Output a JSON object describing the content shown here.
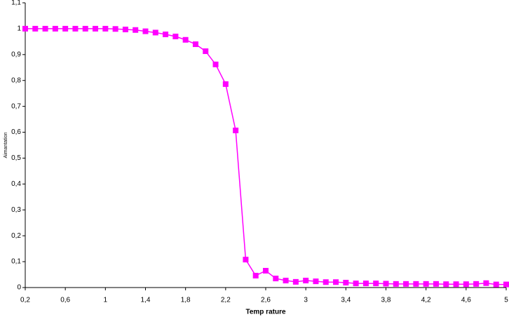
{
  "chart_data": {
    "type": "line",
    "xlabel": "Temp rature",
    "ylabel": "Aimantation",
    "x": [
      0.2,
      0.3,
      0.4,
      0.5,
      0.6,
      0.7,
      0.8,
      0.9,
      1.0,
      1.1,
      1.2,
      1.3,
      1.4,
      1.5,
      1.6,
      1.7,
      1.8,
      1.9,
      2.0,
      2.1,
      2.2,
      2.3,
      2.4,
      2.5,
      2.6,
      2.7,
      2.8,
      2.9,
      3.0,
      3.1,
      3.2,
      3.3,
      3.4,
      3.5,
      3.6,
      3.7,
      3.8,
      3.9,
      4.0,
      4.1,
      4.2,
      4.3,
      4.4,
      4.5,
      4.6,
      4.7,
      4.8,
      4.9,
      5.0
    ],
    "series": [
      {
        "name": "Aimantation",
        "color": "#ff00ff",
        "values": [
          1,
          1,
          1,
          1,
          1,
          1,
          1,
          1,
          1,
          0.999,
          0.997,
          0.995,
          0.99,
          0.985,
          0.978,
          0.97,
          0.957,
          0.94,
          0.913,
          0.862,
          0.786,
          0.607,
          0.108,
          0.046,
          0.065,
          0.035,
          0.027,
          0.022,
          0.027,
          0.024,
          0.021,
          0.021,
          0.019,
          0.016,
          0.016,
          0.016,
          0.015,
          0.014,
          0.014,
          0.014,
          0.014,
          0.014,
          0.013,
          0.013,
          0.013,
          0.014,
          0.017,
          0.012,
          0.012
        ]
      }
    ],
    "xlim": [
      0.2,
      5
    ],
    "xticks": [
      {
        "value": 0.2,
        "label": "0,2"
      },
      {
        "value": 0.6,
        "label": "0,6"
      },
      1,
      {
        "value": 1.4,
        "label": "1,4"
      },
      {
        "value": 1.8,
        "label": "1,8"
      },
      {
        "value": 2.2,
        "label": "2,2"
      },
      {
        "value": 2.6,
        "label": "2,6"
      },
      3,
      {
        "value": 3.4,
        "label": "3,4"
      },
      {
        "value": 3.8,
        "label": "3,8"
      },
      {
        "value": 4.2,
        "label": "4,2"
      },
      {
        "value": 4.6,
        "label": "4,6"
      },
      5
    ],
    "ylim": [
      0,
      1.1
    ],
    "yticks": [
      0,
      {
        "value": 0.1,
        "label": "0,1"
      },
      {
        "value": 0.2,
        "label": "0,2"
      },
      {
        "value": 0.3,
        "label": "0,3"
      },
      {
        "value": 0.4,
        "label": "0,4"
      },
      {
        "value": 0.5,
        "label": "0,5"
      },
      {
        "value": 0.6,
        "label": "0,6"
      },
      {
        "value": 0.7,
        "label": "0,7"
      },
      {
        "value": 0.8,
        "label": "0,8"
      },
      {
        "value": 0.9,
        "label": "0,9"
      },
      1,
      {
        "value": 1.1,
        "label": "1,1"
      }
    ],
    "grid": false
  }
}
